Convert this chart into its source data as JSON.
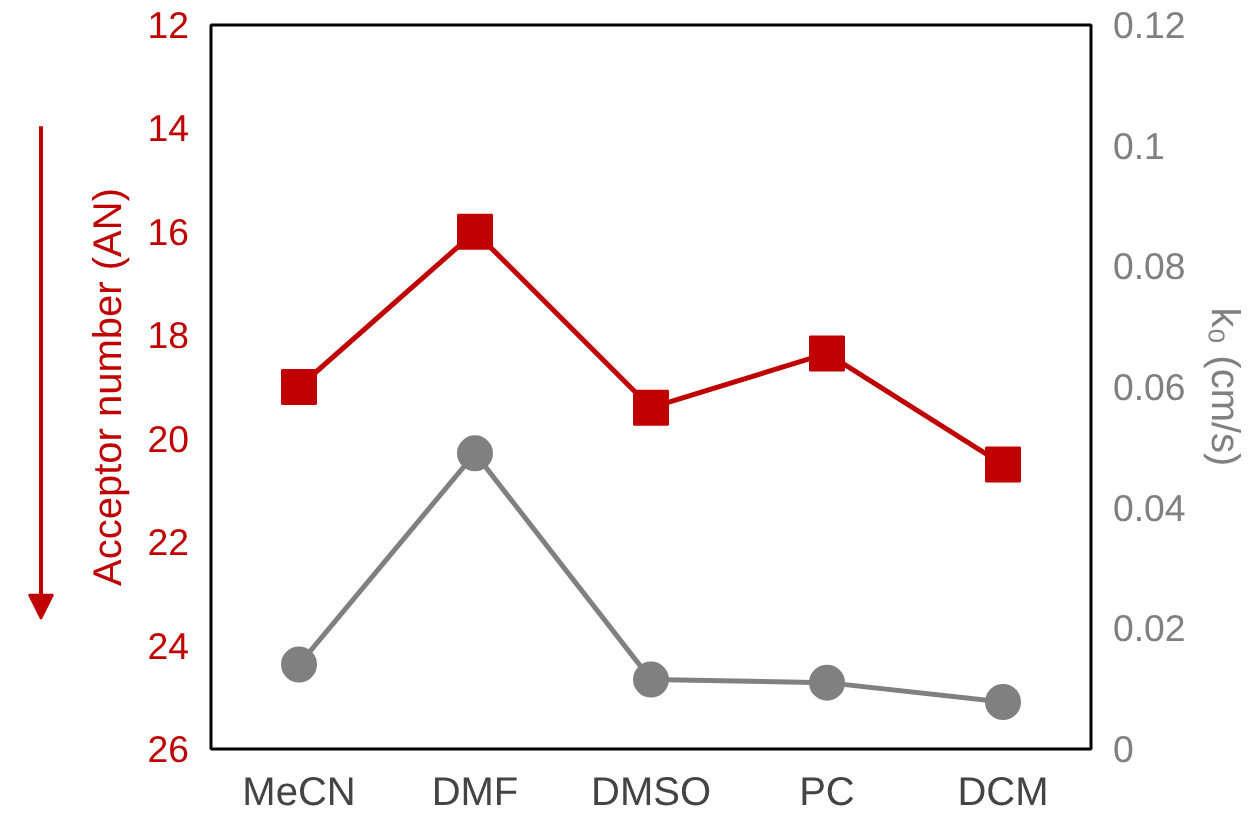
{
  "chart_data": {
    "type": "line",
    "categories": [
      "MeCN",
      "DMF",
      "DMSO",
      "PC",
      "DCM"
    ],
    "ylabel": "Acceptor number (AN)",
    "y2label": "k₀ (cm/s)",
    "ylim": [
      26,
      12
    ],
    "yticks": [
      12,
      14,
      16,
      18,
      20,
      22,
      24,
      26
    ],
    "y2lim": [
      0,
      0.12
    ],
    "y2ticks": [
      0,
      0.02,
      0.04,
      0.06,
      0.08,
      {
        "value": 0.1,
        "label": "0.1"
      },
      0.12
    ],
    "series": [
      {
        "color": "#c00000",
        "values": [
          19.0,
          16.0,
          19.4,
          18.35,
          20.5
        ],
        "marker": "square"
      },
      {
        "color": "#808080",
        "values": [
          0.014,
          0.049,
          0.0115,
          0.011,
          0.0078
        ],
        "marker": "circle",
        "axis": "y2"
      }
    ],
    "grid": false,
    "line_style": "solid"
  }
}
